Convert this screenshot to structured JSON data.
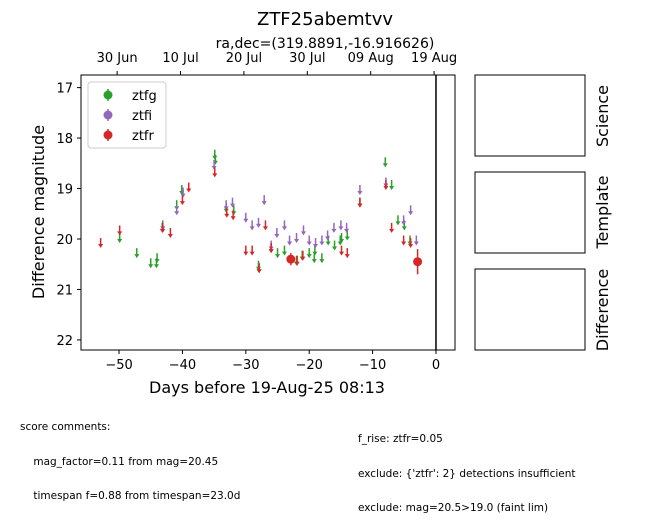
{
  "title": "ZTF25abemtvv",
  "subtitle": "ra,dec=(319.8891,-16.916626)",
  "chart_data": {
    "type": "scatter",
    "xlabel": "Days before 19-Aug-25 08:13",
    "ylabel": "Difference magnitude",
    "xlim": [
      -56,
      3
    ],
    "ylim": [
      22.2,
      16.75
    ],
    "y_inverted": true,
    "x_ticks": [
      -50,
      -40,
      -30,
      -20,
      -10,
      0
    ],
    "y_ticks": [
      17,
      18,
      19,
      20,
      21,
      22
    ],
    "top_axis_ticks": [
      {
        "x": -50.3,
        "label": "30 Jun"
      },
      {
        "x": -40.3,
        "label": "10 Jul"
      },
      {
        "x": -30.3,
        "label": "20 Jul"
      },
      {
        "x": -20.3,
        "label": "30 Jul"
      },
      {
        "x": -10.3,
        "label": "09 Aug"
      },
      {
        "x": -0.3,
        "label": "19 Aug"
      }
    ],
    "vline_x": 0,
    "legend_position": "upper-left",
    "series": [
      {
        "name": "ztfg",
        "color": "#2ca02c",
        "marker": "arrow",
        "points": [
          [
            -49.9,
            20.0
          ],
          [
            -47.2,
            20.3
          ],
          [
            -45.0,
            20.5
          ],
          [
            -44.1,
            20.5
          ],
          [
            -44.0,
            20.4
          ],
          [
            -43.1,
            19.75
          ],
          [
            -40.9,
            19.35
          ],
          [
            -40.1,
            19.05
          ],
          [
            -34.9,
            18.35
          ],
          [
            -34.8,
            18.45
          ],
          [
            -33.1,
            19.4
          ],
          [
            -31.9,
            19.45
          ],
          [
            -28.0,
            20.55
          ],
          [
            -27.9,
            20.6
          ],
          [
            -26.0,
            20.2
          ],
          [
            -25.0,
            20.3
          ],
          [
            -23.9,
            20.25
          ],
          [
            -22.0,
            20.45
          ],
          [
            -21.1,
            20.35
          ],
          [
            -20.0,
            20.3
          ],
          [
            -19.2,
            20.4
          ],
          [
            -19.1,
            20.25
          ],
          [
            -18.0,
            20.4
          ],
          [
            -17.0,
            20.05
          ],
          [
            -16.0,
            20.15
          ],
          [
            -15.1,
            20.05
          ],
          [
            -14.9,
            20.0
          ],
          [
            -14.0,
            19.95
          ],
          [
            -12.0,
            19.3
          ],
          [
            -8.0,
            18.5
          ],
          [
            -7.0,
            18.95
          ],
          [
            -6.0,
            19.65
          ],
          [
            -5.0,
            19.75
          ],
          [
            -4.1,
            20.05
          ]
        ]
      },
      {
        "name": "ztfi",
        "color": "#9467bd",
        "marker": "arrow",
        "points": [
          [
            -43.2,
            19.8
          ],
          [
            -40.9,
            19.45
          ],
          [
            -39.9,
            19.1
          ],
          [
            -35.0,
            18.55
          ],
          [
            -33.1,
            19.35
          ],
          [
            -32.1,
            19.3
          ],
          [
            -30.0,
            19.6
          ],
          [
            -29.0,
            19.75
          ],
          [
            -28.0,
            19.7
          ],
          [
            -27.1,
            19.25
          ],
          [
            -26.0,
            20.15
          ],
          [
            -25.1,
            19.9
          ],
          [
            -23.9,
            19.75
          ],
          [
            -23.1,
            20.05
          ],
          [
            -22.0,
            20.0
          ],
          [
            -20.9,
            19.85
          ],
          [
            -20.0,
            20.05
          ],
          [
            -19.0,
            20.1
          ],
          [
            -18.0,
            20.05
          ],
          [
            -17.1,
            19.95
          ],
          [
            -16.1,
            19.8
          ],
          [
            -15.0,
            19.75
          ],
          [
            -14.1,
            19.8
          ],
          [
            -12.0,
            19.05
          ],
          [
            -7.9,
            18.9
          ],
          [
            -5.1,
            19.65
          ],
          [
            -4.0,
            19.45
          ],
          [
            -3.1,
            20.05
          ]
        ]
      },
      {
        "name": "ztfr",
        "color": "#d62728",
        "marker": "arrow",
        "points": [
          [
            -52.9,
            20.1
          ],
          [
            -49.9,
            19.85
          ],
          [
            -43.1,
            19.8
          ],
          [
            -41.9,
            19.9
          ],
          [
            -40.0,
            19.25
          ],
          [
            -39.0,
            19.0
          ],
          [
            -34.9,
            18.7
          ],
          [
            -33.0,
            19.5
          ],
          [
            -32.0,
            19.55
          ],
          [
            -30.0,
            20.25
          ],
          [
            -29.0,
            20.25
          ],
          [
            -27.9,
            20.6
          ],
          [
            -26.9,
            19.75
          ],
          [
            -26.0,
            20.2
          ],
          [
            -21.9,
            20.45
          ],
          [
            -21.0,
            20.35
          ],
          [
            -14.9,
            20.25
          ],
          [
            -14.0,
            20.3
          ],
          [
            -12.0,
            19.3
          ],
          [
            -7.9,
            18.95
          ],
          [
            -7.0,
            19.8
          ],
          [
            -5.1,
            20.05
          ],
          [
            -4.0,
            20.1
          ]
        ]
      },
      {
        "name": "ztfr-detections",
        "color": "#d62728",
        "marker": "dot",
        "points": [
          [
            -22.9,
            20.4
          ],
          [
            -2.9,
            20.45
          ]
        ],
        "errors": [
          0.12,
          0.25
        ]
      }
    ]
  },
  "panels": [
    "Science",
    "Template",
    "Difference"
  ],
  "comments_left": [
    "score comments:",
    "    mag_factor=0.11 from mag=20.45",
    "    timespan f=0.88 from timespan=23.0d"
  ],
  "comments_right": [
    "f_rise: ztfr=0.05",
    "exclude: {'ztfr': 2} detections insufficient",
    "exclude: mag=20.5>19.0 (faint lim)"
  ]
}
